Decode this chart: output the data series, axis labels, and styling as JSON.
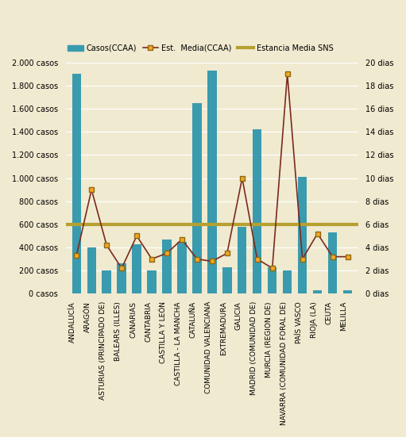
{
  "categories": [
    "ANDALUCÍA",
    "ARAGÓN",
    "ASTURIAS (PRINCIPADO DE)",
    "BALEARS (ILLES)",
    "CANARIAS",
    "CANTABRIA",
    "CASTILLA Y LEÓN",
    "CASTILLA - LA MANCHA",
    "CATALUÑA",
    "COMUNIDAD VALENCIANA",
    "EXTREMADURA",
    "GALICIA",
    "MADRID (COMUNIDAD DE)",
    "MURCIA (REGION DE)",
    "NAVARRA (COMUNIDAD FORAL DE)",
    "PAÍS VASCO",
    "RIOJA (LA)",
    "CEUTA",
    "MELILLA"
  ],
  "casos": [
    1900,
    400,
    200,
    260,
    430,
    200,
    470,
    450,
    1650,
    1930,
    230,
    580,
    1420,
    230,
    200,
    1010,
    30,
    530,
    30
  ],
  "estancia_media_ccaa": [
    3.3,
    9.0,
    4.2,
    2.2,
    5.0,
    3.0,
    3.5,
    4.7,
    3.0,
    2.8,
    3.5,
    10.0,
    3.0,
    2.2,
    19.0,
    3.0,
    5.2,
    3.2,
    3.2
  ],
  "estancia_media_sns": 6.0,
  "bar_color": "#3a9baf",
  "line_color": "#7b2a1e",
  "line_marker_facecolor": "#f5a623",
  "line_marker_edgecolor": "#8B6914",
  "sns_line_color": "#b5a030",
  "background_color": "#f0ead0",
  "ylim_left": [
    0,
    2000
  ],
  "ylim_right": [
    0,
    20
  ],
  "yticks_left": [
    0,
    200,
    400,
    600,
    800,
    1000,
    1200,
    1400,
    1600,
    1800,
    2000
  ],
  "yticks_right": [
    0,
    2,
    4,
    6,
    8,
    10,
    12,
    14,
    16,
    18,
    20
  ],
  "ylabel_left_labels": [
    "0 casos",
    "200 casos",
    "400 casos",
    "600 casos",
    "800 casos",
    "1.000 casos",
    "1.200 casos",
    "1.400 casos",
    "1.600 casos",
    "1.800 casos",
    "2.000 casos"
  ],
  "ylabel_right_labels": [
    "0 dias",
    "2 dias",
    "4 dias",
    "6 dias",
    "8 dias",
    "10 dias",
    "12 dias",
    "14 dias",
    "16 dias",
    "18 dias",
    "20 dias"
  ],
  "legend_casos": "Casos(CCAA)",
  "legend_est_media": "Est.  Media(CCAA)",
  "legend_sns": "Estancia Media SNS",
  "figsize": [
    5.11,
    5.51
  ],
  "dpi": 100
}
